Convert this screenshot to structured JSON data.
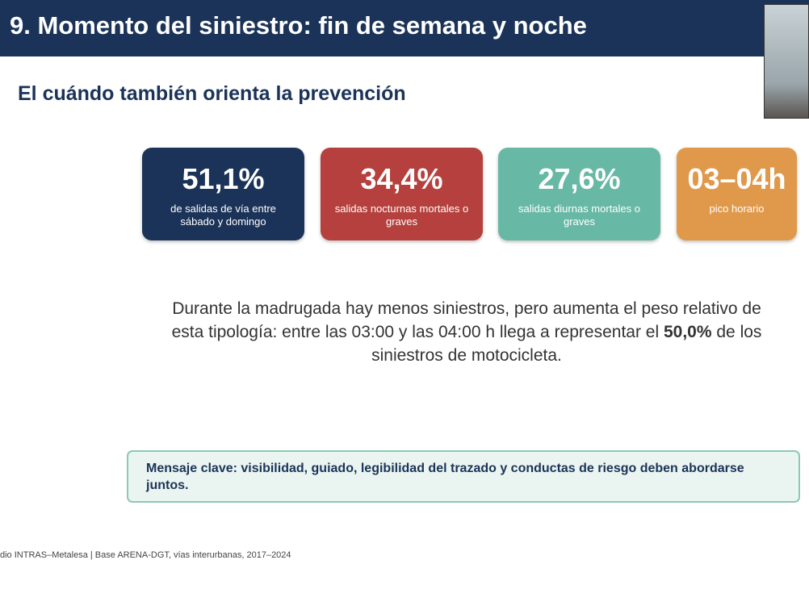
{
  "header": {
    "title": "9. Momento del siniestro: fin de semana y noche"
  },
  "subtitle": "El cuándo también orienta la prevención",
  "cards": [
    {
      "value": "51,1%",
      "label": "de salidas de vía entre sábado y domingo"
    },
    {
      "value": "34,4%",
      "label": "salidas nocturnas mortales o graves"
    },
    {
      "value": "27,6%",
      "label": "salidas diurnas mortales o graves"
    },
    {
      "value": "03–04h",
      "label": "pico horario"
    }
  ],
  "body": {
    "before": "Durante la madrugada hay menos siniestros, pero aumenta el peso relativo de esta tipología: entre las 03:00 y las 04:00 h llega a representar el",
    "bold": "50,0%",
    "after": "de los siniestros de motocicleta."
  },
  "message": "Mensaje clave: visibilidad, guiado, legibilidad del trazado y conductas de riesgo deben abordarse juntos.",
  "footer": "dio INTRAS–Metalesa | Base ARENA-DGT, vías interurbanas, 2017–2024"
}
